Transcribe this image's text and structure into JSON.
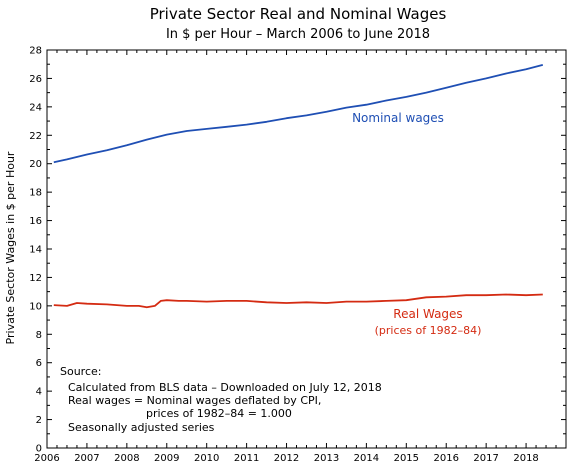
{
  "chart_data": {
    "type": "line",
    "title": "Private Sector Real and Nominal Wages",
    "subtitle": "In $ per Hour  –  March 2006 to June 2018",
    "ylabel": "Private Sector Wages in $ per Hour",
    "xlabel": "",
    "xlim": [
      2006,
      2019
    ],
    "ylim": [
      0,
      28
    ],
    "x_ticks": [
      "2006",
      "2007",
      "2008",
      "2009",
      "2010",
      "2011",
      "2012",
      "2013",
      "2014",
      "2015",
      "2016",
      "2017",
      "2018"
    ],
    "y_ticks": [
      "0",
      "2",
      "4",
      "6",
      "8",
      "10",
      "12",
      "14",
      "16",
      "18",
      "20",
      "22",
      "24",
      "26",
      "28"
    ],
    "grid": false,
    "series": [
      {
        "name": "Nominal wages",
        "color": "#1f4fb4",
        "x": [
          2006.17,
          2006.5,
          2007.0,
          2007.5,
          2008.0,
          2008.5,
          2009.0,
          2009.5,
          2010.0,
          2010.5,
          2011.0,
          2011.5,
          2012.0,
          2012.5,
          2013.0,
          2013.5,
          2014.0,
          2014.5,
          2015.0,
          2015.5,
          2016.0,
          2016.5,
          2017.0,
          2017.5,
          2018.0,
          2018.42
        ],
        "y": [
          20.1,
          20.3,
          20.65,
          20.95,
          21.3,
          21.7,
          22.05,
          22.3,
          22.45,
          22.6,
          22.75,
          22.95,
          23.2,
          23.4,
          23.65,
          23.95,
          24.15,
          24.45,
          24.7,
          25.0,
          25.35,
          25.7,
          26.0,
          26.35,
          26.65,
          26.95
        ]
      },
      {
        "name": "Real Wages",
        "sublabel": "(prices of 1982–84)",
        "color": "#d42b12",
        "x": [
          2006.17,
          2006.5,
          2006.75,
          2007.0,
          2007.5,
          2008.0,
          2008.3,
          2008.5,
          2008.7,
          2008.85,
          2009.0,
          2009.3,
          2009.5,
          2010.0,
          2010.5,
          2011.0,
          2011.5,
          2012.0,
          2012.5,
          2013.0,
          2013.5,
          2014.0,
          2014.5,
          2015.0,
          2015.5,
          2016.0,
          2016.5,
          2017.0,
          2017.5,
          2018.0,
          2018.42
        ],
        "y": [
          10.05,
          10.0,
          10.2,
          10.15,
          10.1,
          10.0,
          10.0,
          9.9,
          10.0,
          10.35,
          10.4,
          10.35,
          10.35,
          10.3,
          10.35,
          10.35,
          10.25,
          10.2,
          10.25,
          10.2,
          10.3,
          10.3,
          10.35,
          10.4,
          10.6,
          10.65,
          10.75,
          10.75,
          10.8,
          10.75,
          10.8
        ]
      }
    ],
    "annotations": {
      "source_heading": "Source:",
      "source_lines": [
        "Calculated from BLS data – Downloaded on July 12, 2018",
        "Real wages = Nominal wages deflated by CPI,",
        "prices of 1982–84 = 1.000",
        "Seasonally adjusted series"
      ]
    }
  }
}
